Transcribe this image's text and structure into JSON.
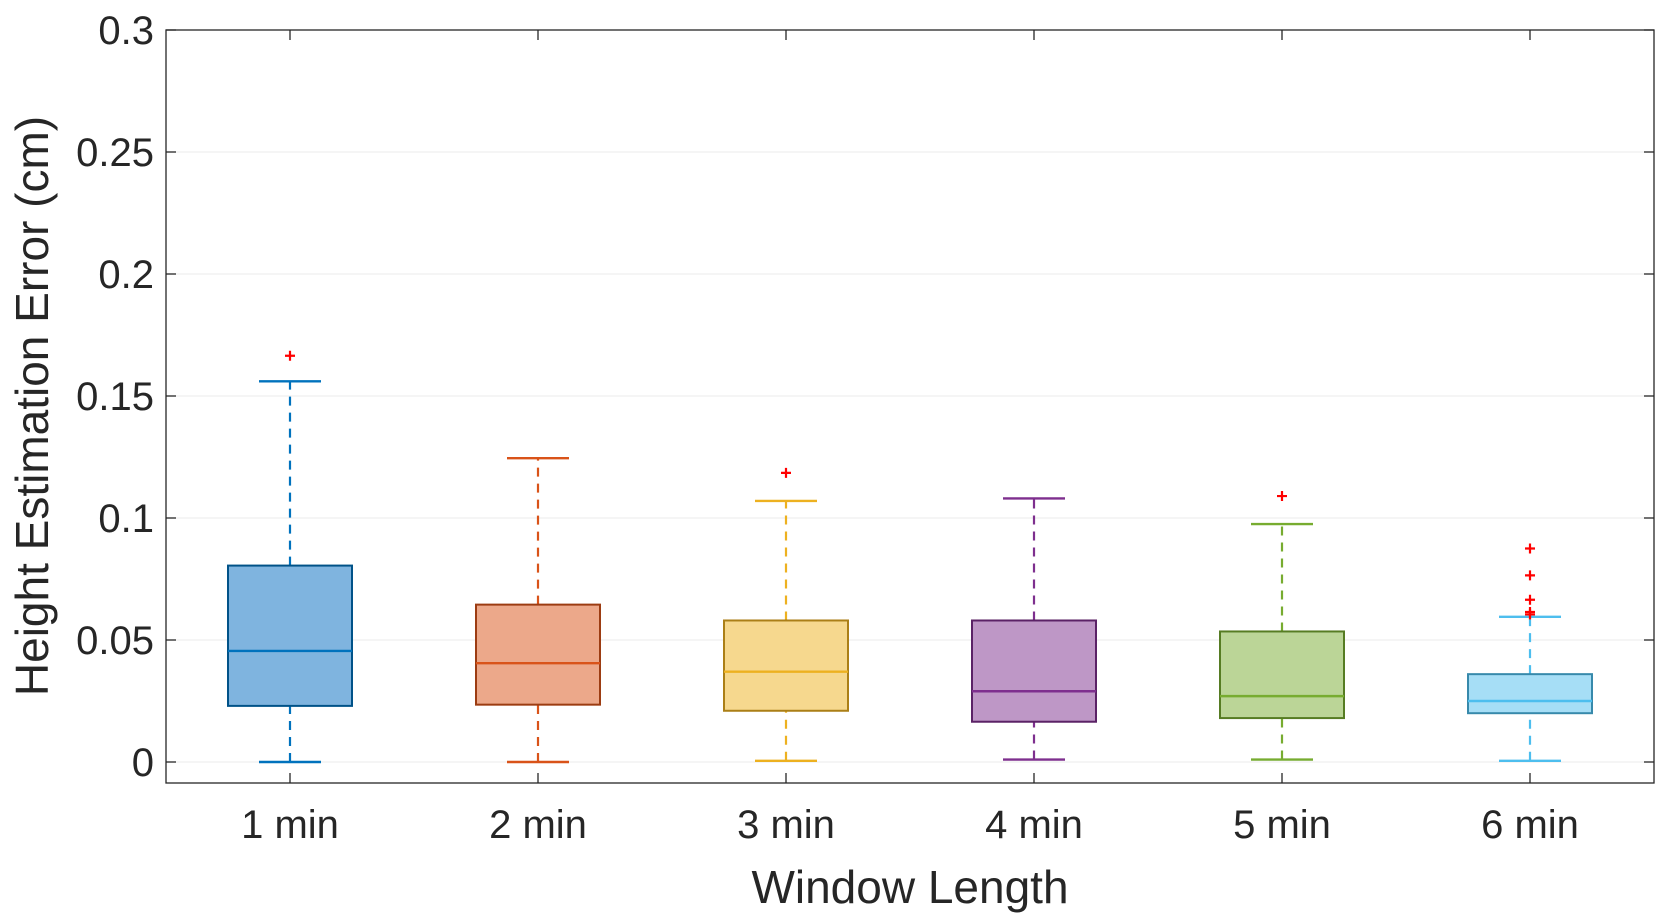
{
  "chart_data": {
    "type": "boxplot",
    "title": "",
    "xlabel": "Window Length",
    "ylabel": "Height Estimation Error (cm)",
    "ylim": [
      0,
      0.3
    ],
    "yticks": [
      0,
      0.05,
      0.1,
      0.15,
      0.2,
      0.25,
      0.3
    ],
    "ytick_labels": [
      "0",
      "0.05",
      "0.1",
      "0.15",
      "0.2",
      "0.25",
      "0.3"
    ],
    "grid": "horizontal",
    "outlier_color": "#ff0000",
    "series": [
      {
        "name": "1 min",
        "min": 0.0,
        "q1": 0.023,
        "median": 0.0455,
        "q3": 0.0805,
        "max": 0.156,
        "outliers": [
          0.1665
        ],
        "color": "#0072bd",
        "fill": "#7fb4df"
      },
      {
        "name": "2 min",
        "min": 0.0,
        "q1": 0.0235,
        "median": 0.0405,
        "q3": 0.0645,
        "max": 0.1245,
        "outliers": [],
        "color": "#d95319",
        "fill": "#eca88a"
      },
      {
        "name": "3 min",
        "min": 0.0005,
        "q1": 0.021,
        "median": 0.037,
        "q3": 0.058,
        "max": 0.107,
        "outliers": [
          0.1185
        ],
        "color": "#edb120",
        "fill": "#f6d88e"
      },
      {
        "name": "4 min",
        "min": 0.001,
        "q1": 0.0165,
        "median": 0.029,
        "q3": 0.058,
        "max": 0.108,
        "outliers": [],
        "color": "#7e2f8e",
        "fill": "#be97c6"
      },
      {
        "name": "5 min",
        "min": 0.001,
        "q1": 0.018,
        "median": 0.027,
        "q3": 0.0535,
        "max": 0.0975,
        "outliers": [
          0.109
        ],
        "color": "#77ac30",
        "fill": "#bbd597"
      },
      {
        "name": "6 min",
        "min": 0.0005,
        "q1": 0.02,
        "median": 0.025,
        "q3": 0.036,
        "max": 0.0595,
        "outliers": [
          0.0605,
          0.0615,
          0.0665,
          0.0765,
          0.0875
        ],
        "color": "#4dbeee",
        "fill": "#a6def6"
      }
    ]
  }
}
